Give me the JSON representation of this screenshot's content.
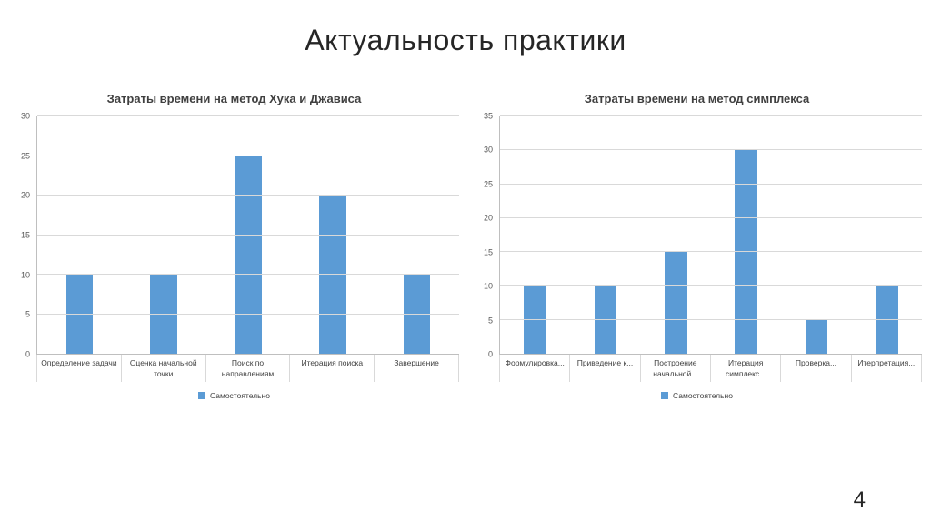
{
  "slide": {
    "title": "Актуальность практики",
    "page_number": "4"
  },
  "chart_data": [
    {
      "type": "bar",
      "title": "Затраты времени на метод Хука и Джависа",
      "categories": [
        "Определение задачи",
        "Оценка начальной точки",
        "Поиск по направлениям",
        "Итерация поиска",
        "Завершение"
      ],
      "values": [
        10,
        10,
        25,
        20,
        10
      ],
      "series_name": "Самостоятельно",
      "legend": [
        "Самостоятельно"
      ],
      "legend_position": "bottom",
      "ylim": [
        0,
        30
      ],
      "ytick_step": 5,
      "grid": true,
      "bar_color": "#5B9BD5",
      "xlabel": "",
      "ylabel": ""
    },
    {
      "type": "bar",
      "title": "Затраты времени на метод симплекса",
      "categories": [
        "Формулировка...",
        "Приведение к...",
        "Построение начальной...",
        "Итерация симплекс...",
        "Проверка...",
        "Итерпретация..."
      ],
      "values": [
        10,
        10,
        15,
        30,
        5,
        10
      ],
      "series_name": "Самостоятельно",
      "legend": [
        "Самостоятельно"
      ],
      "legend_position": "bottom",
      "ylim": [
        0,
        35
      ],
      "ytick_step": 5,
      "grid": true,
      "bar_color": "#5B9BD5",
      "xlabel": "",
      "ylabel": ""
    }
  ]
}
